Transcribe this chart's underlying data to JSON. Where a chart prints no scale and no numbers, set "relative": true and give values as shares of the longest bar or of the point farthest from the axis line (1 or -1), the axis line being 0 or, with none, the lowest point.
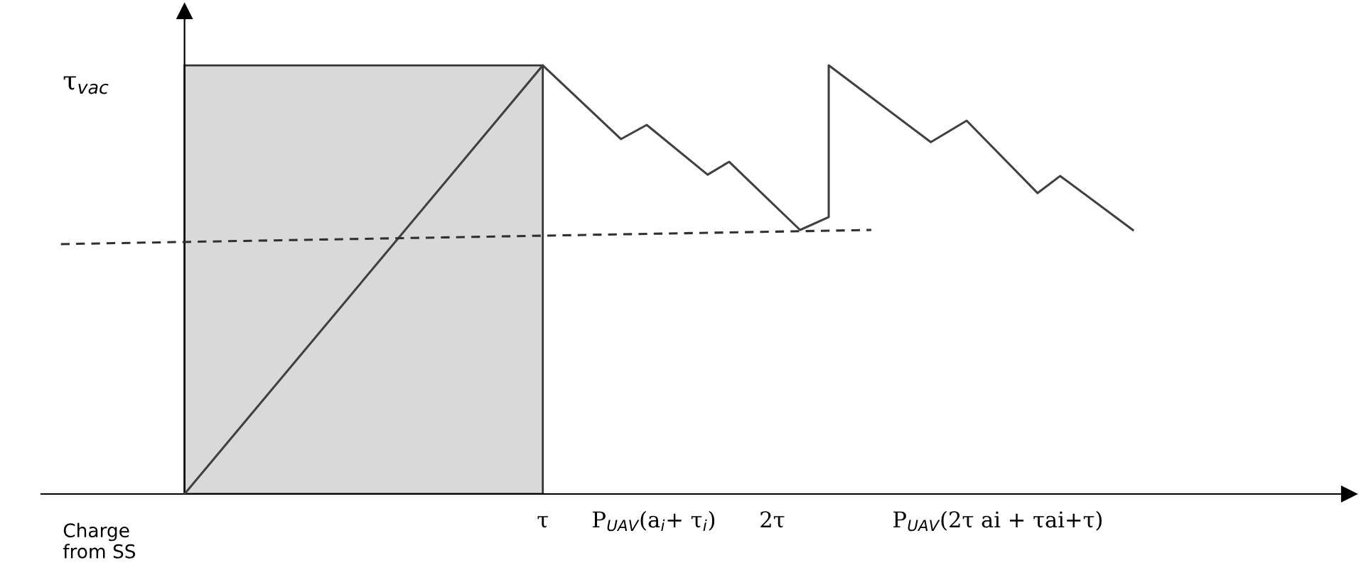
{
  "chart_data": {
    "type": "line",
    "relative": true,
    "xlim": [
      -0.4,
      3.25
    ],
    "xticks": [
      {
        "value": 1,
        "label": "τ"
      },
      {
        "value": 1.31,
        "label": "P$_{UAV}$(a$_{i}$+ τ$_{i}$)"
      },
      {
        "value": 1.64,
        "label": "2τ"
      },
      {
        "value": 2.27,
        "label": "P$_{UAV}$(2τ ai + τai+τ)"
      }
    ],
    "bands": [
      {
        "axis": "x",
        "from": 0,
        "to": 1,
        "color": "#d9d9d9"
      }
    ],
    "series": [
      {
        "color": "#404040",
        "line_style": "solid",
        "x": [
          0,
          1,
          1.218,
          1.29,
          1.46,
          1.52,
          1.718,
          1.798,
          1.798,
          2.083,
          2.183,
          2.381,
          2.444,
          2.647
        ],
        "values": [
          0,
          1,
          0.828,
          0.861,
          0.745,
          0.775,
          0.616,
          0.646,
          1.0,
          0.821,
          0.871,
          0.702,
          0.742,
          0.616
        ]
      },
      {
        "color": "#303030",
        "line_style": "dashed",
        "x": [
          -0.345,
          1.917
        ],
        "values": [
          0.583,
          0.616
        ]
      }
    ],
    "annotations": [
      "τ$_{vac}$",
      "Charge\nfrom SS"
    ]
  }
}
